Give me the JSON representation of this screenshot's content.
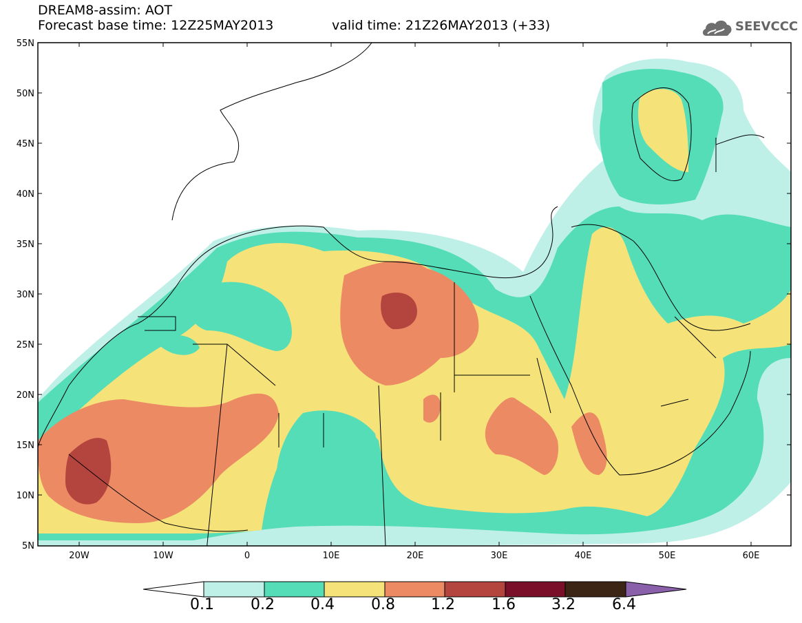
{
  "title": {
    "line1": "DREAM8-assim: AOT",
    "base": "Forecast base time: 12Z25MAY2013",
    "valid": "valid time: 21Z26MAY2013 (+33)"
  },
  "logo": {
    "text": "SEEVCCC",
    "icon": "cloud-icon"
  },
  "axes": {
    "lat_labels": [
      "55N",
      "50N",
      "45N",
      "40N",
      "35N",
      "30N",
      "25N",
      "20N",
      "15N",
      "10N",
      "5N"
    ],
    "lon_labels": [
      "20W",
      "10W",
      "0",
      "10E",
      "20E",
      "30E",
      "40E",
      "50E",
      "60E"
    ]
  },
  "colorbar": {
    "labels": [
      "0.1",
      "0.2",
      "0.4",
      "0.8",
      "1.2",
      "1.6",
      "3.2",
      "6.4"
    ],
    "colors": [
      "#ffffff",
      "#bff0e8",
      "#55ddb8",
      "#f5e37a",
      "#ec8a64",
      "#b4443e",
      "#7a0f2a",
      "#3d2515",
      "#8b60aa"
    ]
  }
}
